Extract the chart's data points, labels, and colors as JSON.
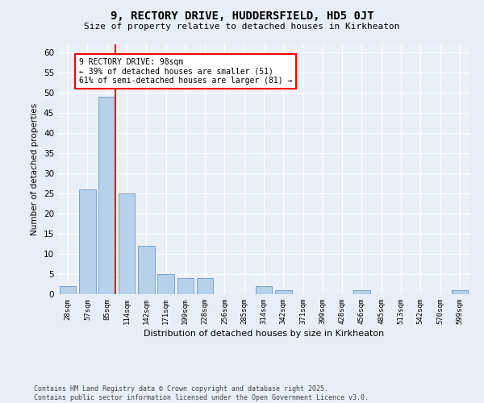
{
  "title1": "9, RECTORY DRIVE, HUDDERSFIELD, HD5 0JT",
  "title2": "Size of property relative to detached houses in Kirkheaton",
  "xlabel": "Distribution of detached houses by size in Kirkheaton",
  "ylabel": "Number of detached properties",
  "bar_categories": [
    "28sqm",
    "57sqm",
    "85sqm",
    "114sqm",
    "142sqm",
    "171sqm",
    "199sqm",
    "228sqm",
    "256sqm",
    "285sqm",
    "314sqm",
    "342sqm",
    "371sqm",
    "399sqm",
    "428sqm",
    "456sqm",
    "485sqm",
    "513sqm",
    "542sqm",
    "570sqm",
    "599sqm"
  ],
  "bar_values": [
    2,
    26,
    49,
    25,
    12,
    5,
    4,
    4,
    0,
    0,
    2,
    1,
    0,
    0,
    0,
    1,
    0,
    0,
    0,
    0,
    1
  ],
  "bar_color": "#b8d0ea",
  "bar_edgecolor": "#6699cc",
  "vline_color": "red",
  "ylim": [
    0,
    62
  ],
  "yticks": [
    0,
    5,
    10,
    15,
    20,
    25,
    30,
    35,
    40,
    45,
    50,
    55,
    60
  ],
  "annotation_text": "9 RECTORY DRIVE: 98sqm\n← 39% of detached houses are smaller (51)\n61% of semi-detached houses are larger (81) →",
  "annotation_box_color": "white",
  "annotation_box_edgecolor": "red",
  "footer_text": "Contains HM Land Registry data © Crown copyright and database right 2025.\nContains public sector information licensed under the Open Government Licence v3.0.",
  "bg_color": "#e8eef8",
  "plot_bg_color": "#eaf0f8"
}
